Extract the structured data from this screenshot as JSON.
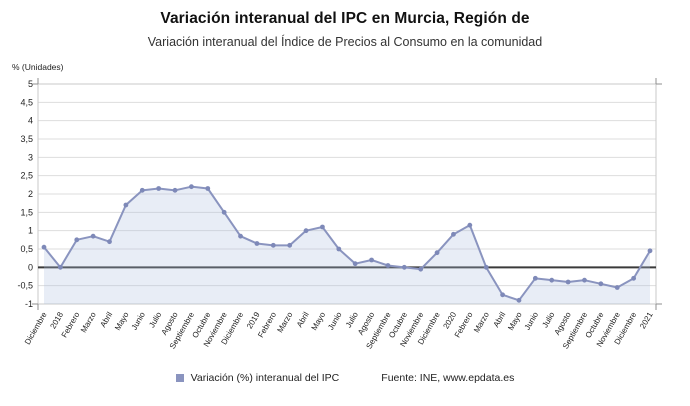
{
  "header": {
    "title": "Variación interanual del IPC en Murcia, Región de",
    "subtitle": "Variación interanual del Índice de Precios al Consumo en la comunidad"
  },
  "axes": {
    "unit_label": "% (Unidades)"
  },
  "legend": {
    "series_label": "Variación (%) interanual del IPC"
  },
  "source": {
    "text": "Fuente: INE, www.epdata.es"
  },
  "chart_data": {
    "type": "line",
    "title": "Variación interanual del IPC en Murcia, Región de",
    "subtitle": "Variación interanual del Índice de Precios al Consumo en la comunidad",
    "xlabel": "",
    "ylabel": "% (Unidades)",
    "ylim": [
      -1,
      5
    ],
    "ytick_step": 0.5,
    "ytick_labels": [
      "5",
      "4,5",
      "4",
      "3,5",
      "3",
      "2,5",
      "2",
      "1,5",
      "1",
      "0,5",
      "0",
      "-0,5",
      "-1"
    ],
    "grid": "horizontal",
    "legend_position": "bottom",
    "categories": [
      "Diciembre",
      "2018",
      "Febrero",
      "Marzo",
      "Abril",
      "Mayo",
      "Junio",
      "Julio",
      "Agosto",
      "Septiembre",
      "Octubre",
      "Noviembre",
      "Diciembre",
      "2019",
      "Febrero",
      "Marzo",
      "Abril",
      "Mayo",
      "Junio",
      "Julio",
      "Agosto",
      "Septiembre",
      "Octubre",
      "Noviembre",
      "Diciembre",
      "2020",
      "Febrero",
      "Marzo",
      "Abril",
      "Mayo",
      "Junio",
      "Julio",
      "Agosto",
      "Septiembre",
      "Octubre",
      "Noviembre",
      "Diciembre",
      "2021"
    ],
    "series": [
      {
        "name": "Variación (%) interanual del IPC",
        "values": [
          0.55,
          0.0,
          0.75,
          0.85,
          0.7,
          1.7,
          2.1,
          2.15,
          2.1,
          2.2,
          2.15,
          1.5,
          0.85,
          0.65,
          0.6,
          0.6,
          1.0,
          1.1,
          0.5,
          0.1,
          0.2,
          0.05,
          0.0,
          -0.05,
          0.4,
          0.9,
          1.15,
          0.0,
          -0.75,
          -0.9,
          -0.3,
          -0.35,
          -0.4,
          -0.35,
          -0.45,
          -0.55,
          -0.3,
          0.45
        ]
      }
    ],
    "colors": {
      "line": "#8a94bf",
      "marker": "#7e89b8",
      "area": "#aebfdd",
      "zero_line": "#3a3a3a",
      "grid": "#dddddd",
      "border": "#c9c9c9",
      "tick_text": "#222222"
    }
  }
}
